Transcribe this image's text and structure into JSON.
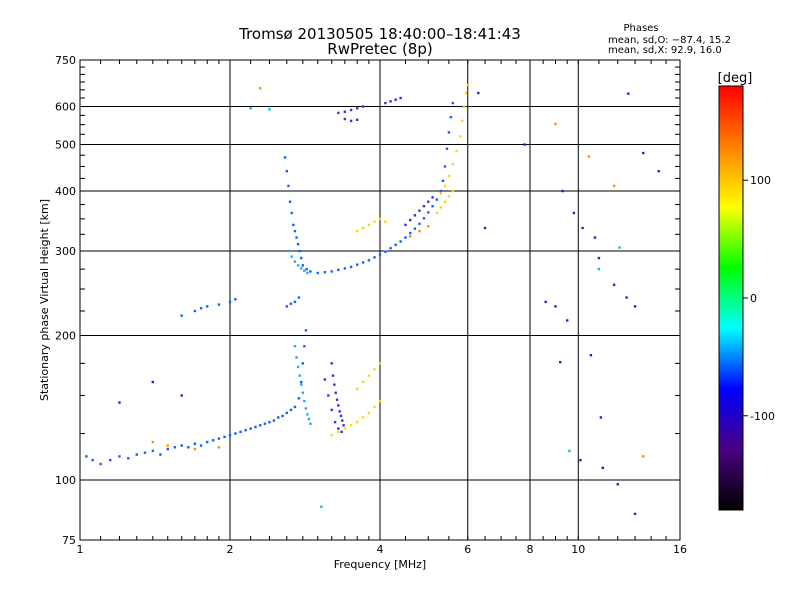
{
  "chart_data": {
    "type": "scatter",
    "title": "Tromsø 20130505 18:40:00–18:41:43",
    "subtitle": "RwPretec (8p)",
    "xlabel": "Frequency [MHz]",
    "ylabel": "Stationary phase Virtual Height [km]",
    "x_scale": "log",
    "y_scale": "log",
    "xlim": [
      1,
      16
    ],
    "ylim": [
      75,
      750
    ],
    "x_ticks": [
      1,
      2,
      4,
      6,
      8,
      10,
      16
    ],
    "x_tick_labels": [
      "1",
      "2",
      "4",
      "6",
      "8",
      "10",
      "16"
    ],
    "x_vgrid": [
      1,
      2,
      4,
      6,
      8,
      10
    ],
    "y_ticks": [
      75,
      100,
      200,
      300,
      400,
      500,
      600,
      750
    ],
    "y_tick_labels": [
      "75",
      "100",
      "200",
      "300",
      "400",
      "500",
      "600",
      "750"
    ],
    "y_hgrid": [
      100,
      200,
      300,
      400,
      500,
      600
    ],
    "grid": true,
    "phase_box": {
      "heading": "Phases",
      "line_o": "mean, sd,O: −87.4, 15.2",
      "line_x": "mean, sd,X:  92.9, 16.0"
    },
    "colorbar": {
      "label": "[deg]",
      "range": [
        -180,
        180
      ],
      "ticks": [
        100,
        0,
        -100
      ],
      "tick_labels": [
        "100",
        "0",
        "-100"
      ],
      "colors": [
        "#ff0000",
        "#ff8000",
        "#ffff00",
        "#00ff00",
        "#00ffff",
        "#0000ff",
        "#4b0082",
        "#000000"
      ]
    },
    "series": [
      {
        "color": "#1060ff",
        "points": [
          [
            1.03,
            112
          ],
          [
            1.06,
            110
          ],
          [
            1.1,
            108
          ],
          [
            1.15,
            110
          ],
          [
            1.2,
            112
          ],
          [
            1.25,
            111
          ],
          [
            1.3,
            113
          ],
          [
            1.35,
            114
          ],
          [
            1.4,
            115
          ],
          [
            1.45,
            113
          ],
          [
            1.5,
            116
          ],
          [
            1.55,
            117
          ],
          [
            1.6,
            118
          ],
          [
            1.65,
            117
          ],
          [
            1.7,
            119
          ],
          [
            1.75,
            118
          ],
          [
            1.8,
            120
          ],
          [
            1.85,
            121
          ],
          [
            1.9,
            122
          ],
          [
            1.95,
            123
          ],
          [
            2.0,
            124
          ],
          [
            2.05,
            125
          ],
          [
            2.1,
            126
          ],
          [
            2.15,
            127
          ],
          [
            2.2,
            128
          ],
          [
            2.25,
            129
          ],
          [
            2.3,
            130
          ],
          [
            2.35,
            131
          ],
          [
            2.4,
            132
          ],
          [
            2.45,
            133
          ],
          [
            2.5,
            135
          ],
          [
            2.55,
            136
          ],
          [
            2.6,
            138
          ],
          [
            2.65,
            140
          ],
          [
            2.7,
            142
          ],
          [
            2.75,
            148
          ],
          [
            2.78,
            160
          ],
          [
            2.8,
            175
          ],
          [
            2.82,
            190
          ],
          [
            2.84,
            205
          ],
          [
            2.6,
            230
          ],
          [
            2.65,
            233
          ],
          [
            2.7,
            235
          ],
          [
            2.75,
            240
          ],
          [
            2.58,
            470
          ],
          [
            2.6,
            440
          ],
          [
            2.62,
            410
          ],
          [
            2.64,
            380
          ],
          [
            2.66,
            360
          ],
          [
            2.68,
            340
          ],
          [
            2.7,
            330
          ],
          [
            2.72,
            320
          ],
          [
            2.74,
            310
          ],
          [
            2.76,
            300
          ],
          [
            2.78,
            290
          ],
          [
            2.8,
            280
          ],
          [
            2.85,
            275
          ],
          [
            2.9,
            272
          ],
          [
            3.0,
            270
          ],
          [
            3.1,
            271
          ],
          [
            3.2,
            272
          ],
          [
            3.3,
            274
          ],
          [
            3.4,
            276
          ],
          [
            3.5,
            278
          ],
          [
            3.6,
            281
          ],
          [
            3.7,
            284
          ],
          [
            3.8,
            287
          ],
          [
            3.9,
            291
          ],
          [
            4.0,
            295
          ],
          [
            4.1,
            299
          ],
          [
            4.2,
            304
          ],
          [
            4.3,
            309
          ],
          [
            4.4,
            314
          ],
          [
            4.5,
            320
          ],
          [
            4.6,
            327
          ],
          [
            4.7,
            334
          ],
          [
            4.8,
            342
          ],
          [
            4.9,
            351
          ],
          [
            5.0,
            361
          ],
          [
            5.1,
            372
          ],
          [
            5.2,
            384
          ],
          [
            5.3,
            400
          ],
          [
            5.35,
            420
          ],
          [
            5.4,
            450
          ],
          [
            5.45,
            490
          ],
          [
            5.5,
            530
          ],
          [
            5.55,
            570
          ],
          [
            5.6,
            610
          ],
          [
            1.6,
            220
          ],
          [
            1.7,
            225
          ],
          [
            1.75,
            228
          ],
          [
            1.8,
            230
          ],
          [
            1.9,
            232
          ],
          [
            2.0,
            235
          ],
          [
            2.05,
            238
          ]
        ]
      },
      {
        "color": "#3a2fd8",
        "points": [
          [
            3.3,
            582
          ],
          [
            3.4,
            585
          ],
          [
            3.5,
            590
          ],
          [
            3.6,
            595
          ],
          [
            3.7,
            600
          ],
          [
            3.4,
            565
          ],
          [
            3.5,
            560
          ],
          [
            3.6,
            563
          ],
          [
            4.1,
            610
          ],
          [
            4.2,
            615
          ],
          [
            4.3,
            620
          ],
          [
            4.4,
            625
          ],
          [
            3.1,
            162
          ],
          [
            3.15,
            150
          ],
          [
            3.2,
            140
          ],
          [
            3.25,
            132
          ],
          [
            3.3,
            128
          ],
          [
            3.35,
            126
          ],
          [
            3.2,
            175
          ],
          [
            3.22,
            165
          ],
          [
            3.24,
            158
          ],
          [
            3.26,
            152
          ],
          [
            3.28,
            147
          ],
          [
            3.3,
            143
          ],
          [
            3.32,
            139
          ],
          [
            3.34,
            136
          ],
          [
            3.36,
            133
          ],
          [
            3.38,
            130
          ],
          [
            4.5,
            340
          ],
          [
            4.6,
            348
          ],
          [
            4.7,
            356
          ],
          [
            4.8,
            364
          ],
          [
            4.9,
            372
          ],
          [
            5.0,
            380
          ],
          [
            5.1,
            388
          ]
        ]
      },
      {
        "color": "#20a8ff",
        "points": [
          [
            2.7,
            190
          ],
          [
            2.72,
            180
          ],
          [
            2.74,
            172
          ],
          [
            2.76,
            165
          ],
          [
            2.78,
            158
          ],
          [
            2.8,
            152
          ],
          [
            2.82,
            146
          ],
          [
            2.84,
            141
          ],
          [
            2.86,
            137
          ],
          [
            2.88,
            134
          ],
          [
            2.9,
            131
          ],
          [
            2.62,
            300
          ],
          [
            2.66,
            292
          ],
          [
            2.7,
            285
          ],
          [
            2.74,
            280
          ],
          [
            2.78,
            276
          ],
          [
            2.82,
            273
          ],
          [
            2.86,
            270
          ]
        ]
      },
      {
        "color": "#ffd800",
        "points": [
          [
            3.2,
            124
          ],
          [
            3.3,
            126
          ],
          [
            3.4,
            128
          ],
          [
            3.5,
            130
          ],
          [
            3.6,
            132
          ],
          [
            3.7,
            135
          ],
          [
            3.8,
            138
          ],
          [
            3.9,
            142
          ],
          [
            4.0,
            146
          ],
          [
            3.6,
            155
          ],
          [
            3.7,
            160
          ],
          [
            3.8,
            165
          ],
          [
            3.9,
            170
          ],
          [
            4.0,
            175
          ],
          [
            3.6,
            330
          ],
          [
            3.7,
            335
          ],
          [
            3.8,
            340
          ],
          [
            3.9,
            345
          ],
          [
            4.0,
            350
          ],
          [
            4.1,
            345
          ],
          [
            5.3,
            395
          ],
          [
            5.4,
            410
          ],
          [
            5.5,
            430
          ],
          [
            5.6,
            455
          ],
          [
            5.7,
            485
          ],
          [
            5.8,
            520
          ],
          [
            5.85,
            560
          ],
          [
            5.9,
            600
          ],
          [
            5.95,
            640
          ],
          [
            6.0,
            665
          ],
          [
            5.2,
            360
          ],
          [
            5.3,
            370
          ],
          [
            5.4,
            380
          ],
          [
            5.5,
            390
          ],
          [
            5.6,
            400
          ]
        ]
      },
      {
        "color": "#ff8c00",
        "points": [
          [
            2.3,
            655
          ],
          [
            1.4,
            120
          ],
          [
            1.5,
            118
          ],
          [
            1.7,
            116
          ],
          [
            1.9,
            117
          ],
          [
            4.6,
            322
          ],
          [
            4.8,
            330
          ],
          [
            5.0,
            338
          ],
          [
            9.0,
            552
          ],
          [
            10.5,
            472
          ],
          [
            11.8,
            410
          ],
          [
            13.5,
            112
          ]
        ]
      },
      {
        "color": "#00c8d0",
        "points": [
          [
            2.2,
            595
          ],
          [
            2.4,
            592
          ],
          [
            11.0,
            275
          ],
          [
            12.1,
            305
          ],
          [
            3.05,
            88
          ],
          [
            9.6,
            115
          ]
        ]
      },
      {
        "color": "#1030c0",
        "points": [
          [
            6.3,
            640
          ],
          [
            6.5,
            335
          ],
          [
            7.8,
            500
          ],
          [
            9.3,
            400
          ],
          [
            9.8,
            360
          ],
          [
            10.2,
            335
          ],
          [
            10.8,
            320
          ],
          [
            11.0,
            290
          ],
          [
            11.8,
            255
          ],
          [
            12.5,
            240
          ],
          [
            13.0,
            230
          ],
          [
            14.5,
            440
          ],
          [
            12.6,
            638
          ],
          [
            11.2,
            106
          ],
          [
            10.1,
            110
          ],
          [
            9.0,
            230
          ],
          [
            9.2,
            176
          ],
          [
            10.6,
            182
          ],
          [
            11.1,
            135
          ],
          [
            13.5,
            480
          ],
          [
            1.4,
            160
          ],
          [
            1.6,
            150
          ],
          [
            1.2,
            145
          ],
          [
            12.0,
            98
          ],
          [
            13.0,
            85
          ],
          [
            8.6,
            235
          ],
          [
            9.5,
            215
          ]
        ]
      }
    ]
  }
}
